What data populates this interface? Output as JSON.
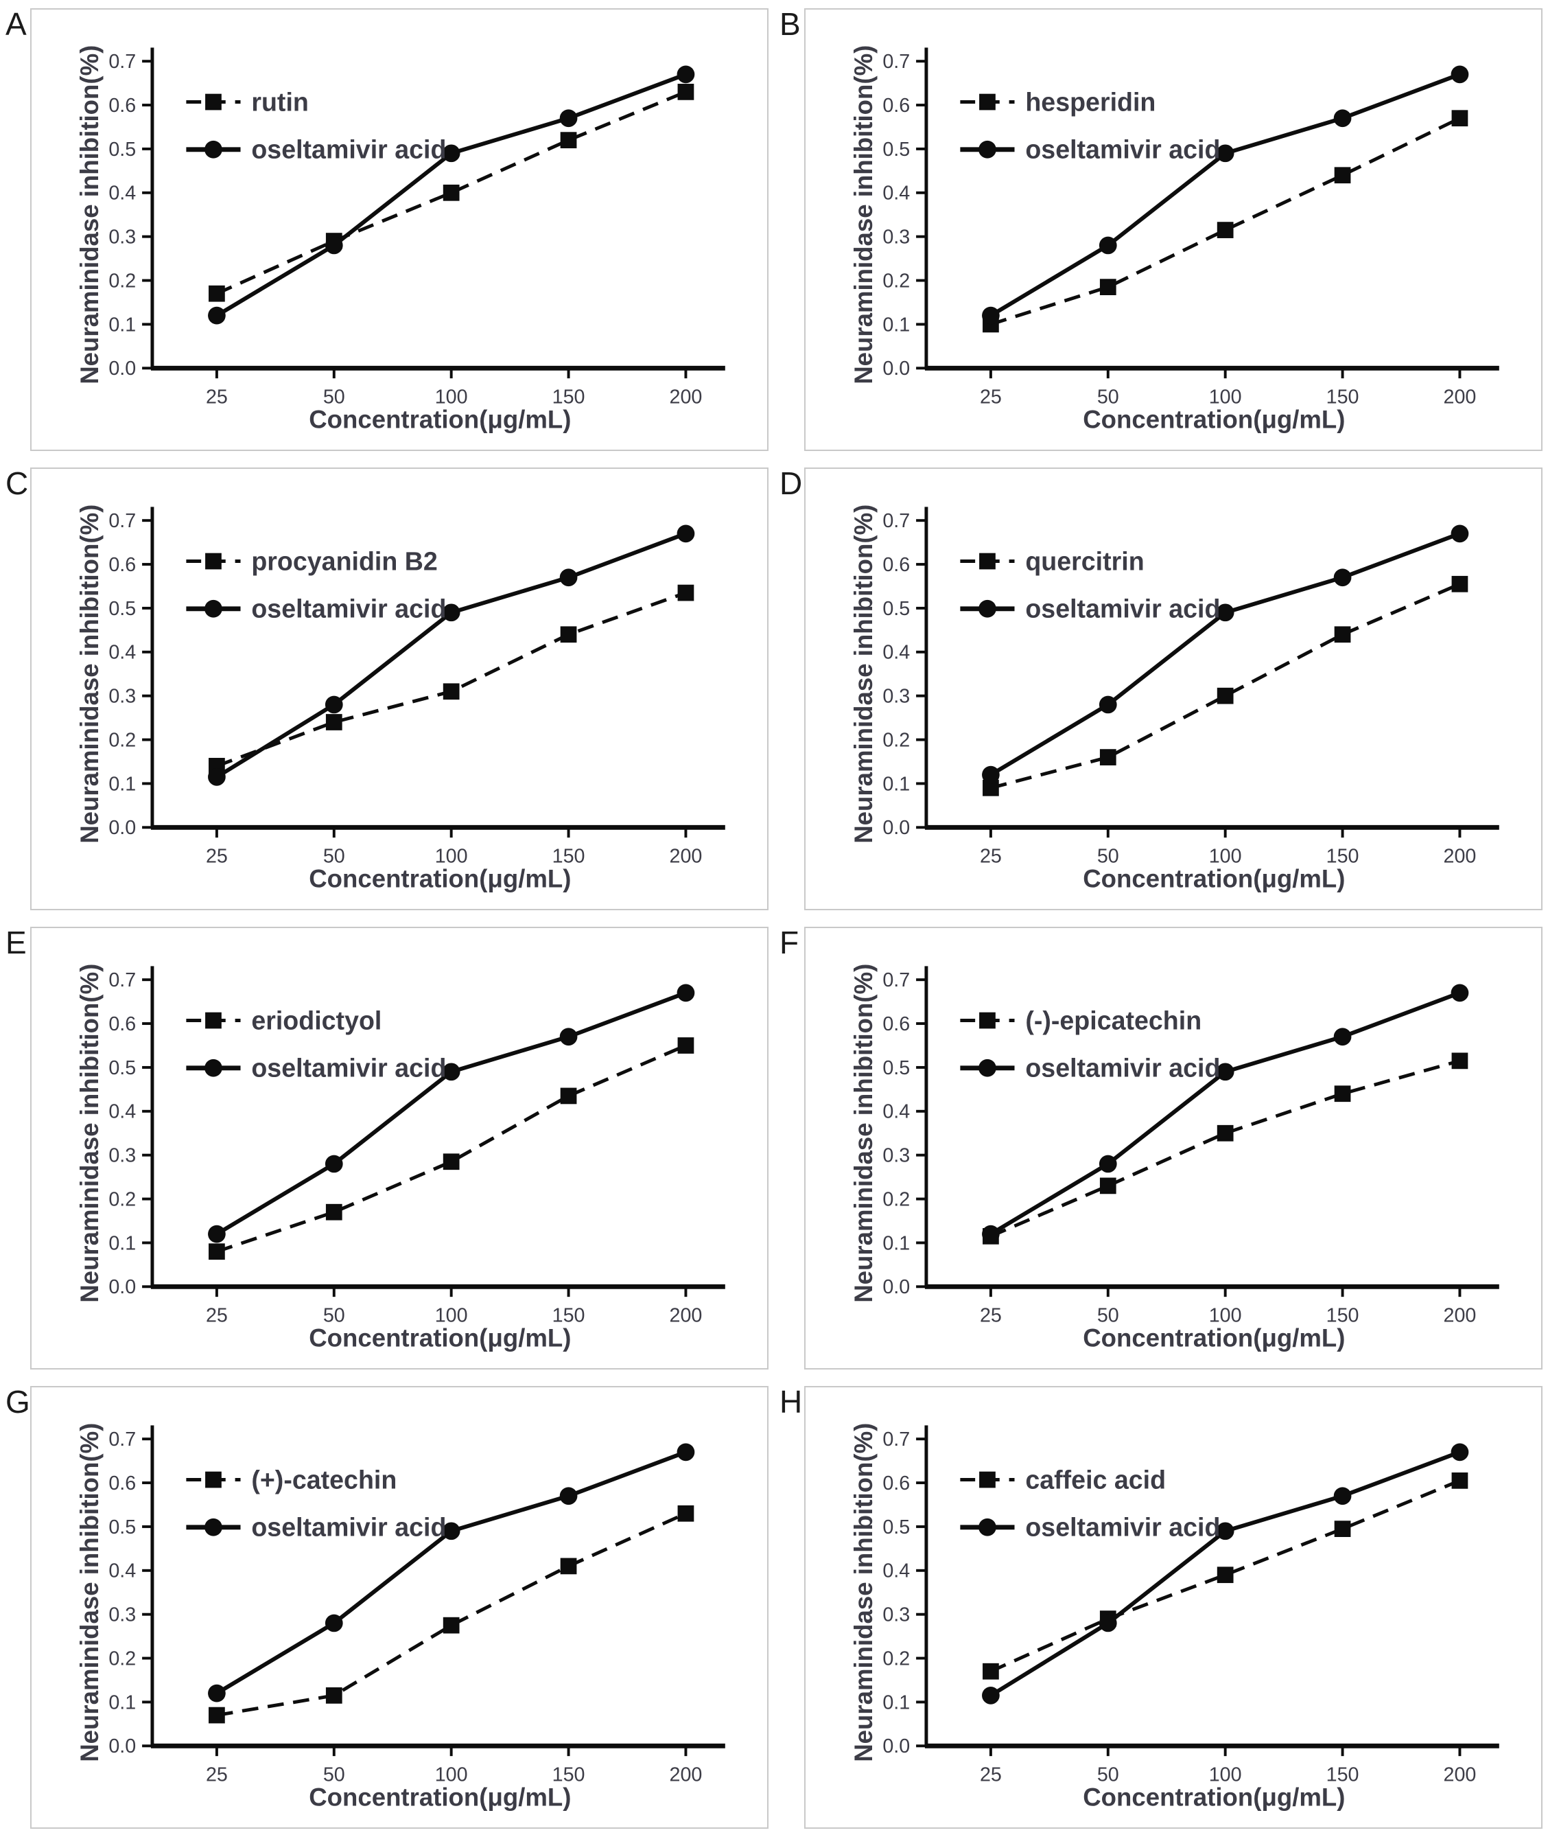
{
  "figure": {
    "y_axis_label": "Neuraminidase inhibition(%)",
    "x_axis_label": "Concentration(μg/mL)",
    "y_tick_labels": [
      "0.0",
      "0.1",
      "0.2",
      "0.3",
      "0.4",
      "0.5",
      "0.6",
      "0.7"
    ],
    "x_tick_labels": [
      "25",
      "50",
      "100",
      "150",
      "200"
    ],
    "reference_series": "oseltamivir acid",
    "colors": {
      "line": "#0d0d0d",
      "text": "#3c3c46",
      "panel_border": "#c9c9c9",
      "background": "#ffffff"
    }
  },
  "chart_data": [
    {
      "type": "line",
      "panel": "A",
      "compound": "rutin",
      "categories": [
        25,
        50,
        100,
        150,
        200
      ],
      "xlabel": "Concentration(μg/mL)",
      "ylabel": "Neuraminidase inhibition(%)",
      "ylim": [
        0.0,
        0.7
      ],
      "legend_position": "upper-left",
      "grid": false,
      "series": [
        {
          "name": "rutin",
          "marker": "square",
          "line": "dashed",
          "values": [
            0.17,
            0.29,
            0.4,
            0.52,
            0.63
          ]
        },
        {
          "name": "oseltamivir acid",
          "marker": "circle",
          "line": "solid",
          "values": [
            0.12,
            0.28,
            0.49,
            0.57,
            0.67
          ]
        }
      ]
    },
    {
      "type": "line",
      "panel": "B",
      "compound": "hesperidin",
      "categories": [
        25,
        50,
        100,
        150,
        200
      ],
      "xlabel": "Concentration(μg/mL)",
      "ylabel": "Neuraminidase inhibition(%)",
      "ylim": [
        0.0,
        0.7
      ],
      "legend_position": "upper-left",
      "grid": false,
      "series": [
        {
          "name": "hesperidin",
          "marker": "square",
          "line": "dashed",
          "values": [
            0.1,
            0.185,
            0.315,
            0.44,
            0.57
          ]
        },
        {
          "name": "oseltamivir acid",
          "marker": "circle",
          "line": "solid",
          "values": [
            0.12,
            0.28,
            0.49,
            0.57,
            0.67
          ]
        }
      ]
    },
    {
      "type": "line",
      "panel": "C",
      "compound": "procyanidin B2",
      "categories": [
        25,
        50,
        100,
        150,
        200
      ],
      "xlabel": "Concentration(μg/mL)",
      "ylabel": "Neuraminidase inhibition(%)",
      "ylim": [
        0.0,
        0.7
      ],
      "legend_position": "upper-left",
      "grid": false,
      "series": [
        {
          "name": "procyanidin B2",
          "marker": "square",
          "line": "dashed",
          "values": [
            0.14,
            0.24,
            0.31,
            0.44,
            0.535
          ]
        },
        {
          "name": "oseltamivir acid",
          "marker": "circle",
          "line": "solid",
          "values": [
            0.115,
            0.28,
            0.49,
            0.57,
            0.67
          ]
        }
      ]
    },
    {
      "type": "line",
      "panel": "D",
      "compound": "quercitrin",
      "categories": [
        25,
        50,
        100,
        150,
        200
      ],
      "xlabel": "Concentration(μg/mL)",
      "ylabel": "Neuraminidase inhibition(%)",
      "ylim": [
        0.0,
        0.7
      ],
      "legend_position": "upper-left",
      "grid": false,
      "series": [
        {
          "name": "quercitrin",
          "marker": "square",
          "line": "dashed",
          "values": [
            0.09,
            0.16,
            0.3,
            0.44,
            0.555
          ]
        },
        {
          "name": "oseltamivir acid",
          "marker": "circle",
          "line": "solid",
          "values": [
            0.12,
            0.28,
            0.49,
            0.57,
            0.67
          ]
        }
      ]
    },
    {
      "type": "line",
      "panel": "E",
      "compound": "eriodictyol",
      "categories": [
        25,
        50,
        100,
        150,
        200
      ],
      "xlabel": "Concentration(μg/mL)",
      "ylabel": "Neuraminidase inhibition(%)",
      "ylim": [
        0.0,
        0.7
      ],
      "legend_position": "upper-left",
      "grid": false,
      "series": [
        {
          "name": "eriodictyol",
          "marker": "square",
          "line": "dashed",
          "values": [
            0.08,
            0.17,
            0.285,
            0.435,
            0.55
          ]
        },
        {
          "name": "oseltamivir acid",
          "marker": "circle",
          "line": "solid",
          "values": [
            0.12,
            0.28,
            0.49,
            0.57,
            0.67
          ]
        }
      ]
    },
    {
      "type": "line",
      "panel": "F",
      "compound": "(-)-epicatechin",
      "categories": [
        25,
        50,
        100,
        150,
        200
      ],
      "xlabel": "Concentration(μg/mL)",
      "ylabel": "Neuraminidase inhibition(%)",
      "ylim": [
        0.0,
        0.7
      ],
      "legend_position": "upper-left",
      "grid": false,
      "series": [
        {
          "name": "(-)-epicatechin",
          "marker": "square",
          "line": "dashed",
          "values": [
            0.115,
            0.23,
            0.35,
            0.44,
            0.515
          ]
        },
        {
          "name": "oseltamivir acid",
          "marker": "circle",
          "line": "solid",
          "values": [
            0.12,
            0.28,
            0.49,
            0.57,
            0.67
          ]
        }
      ]
    },
    {
      "type": "line",
      "panel": "G",
      "compound": "(+)-catechin",
      "categories": [
        25,
        50,
        100,
        150,
        200
      ],
      "xlabel": "Concentration(μg/mL)",
      "ylabel": "Neuraminidase inhibition(%)",
      "ylim": [
        0.0,
        0.7
      ],
      "legend_position": "upper-left",
      "grid": false,
      "series": [
        {
          "name": "(+)-catechin",
          "marker": "square",
          "line": "dashed",
          "values": [
            0.07,
            0.115,
            0.275,
            0.41,
            0.53
          ]
        },
        {
          "name": "oseltamivir acid",
          "marker": "circle",
          "line": "solid",
          "values": [
            0.12,
            0.28,
            0.49,
            0.57,
            0.67
          ]
        }
      ]
    },
    {
      "type": "line",
      "panel": "H",
      "compound": "caffeic acid",
      "categories": [
        25,
        50,
        100,
        150,
        200
      ],
      "xlabel": "Concentration(μg/mL)",
      "ylabel": "Neuraminidase inhibition(%)",
      "ylim": [
        0.0,
        0.7
      ],
      "legend_position": "upper-left",
      "grid": false,
      "series": [
        {
          "name": "caffeic acid",
          "marker": "square",
          "line": "dashed",
          "values": [
            0.17,
            0.29,
            0.39,
            0.495,
            0.605
          ]
        },
        {
          "name": "oseltamivir acid",
          "marker": "circle",
          "line": "solid",
          "values": [
            0.115,
            0.28,
            0.49,
            0.57,
            0.67
          ]
        }
      ]
    }
  ]
}
